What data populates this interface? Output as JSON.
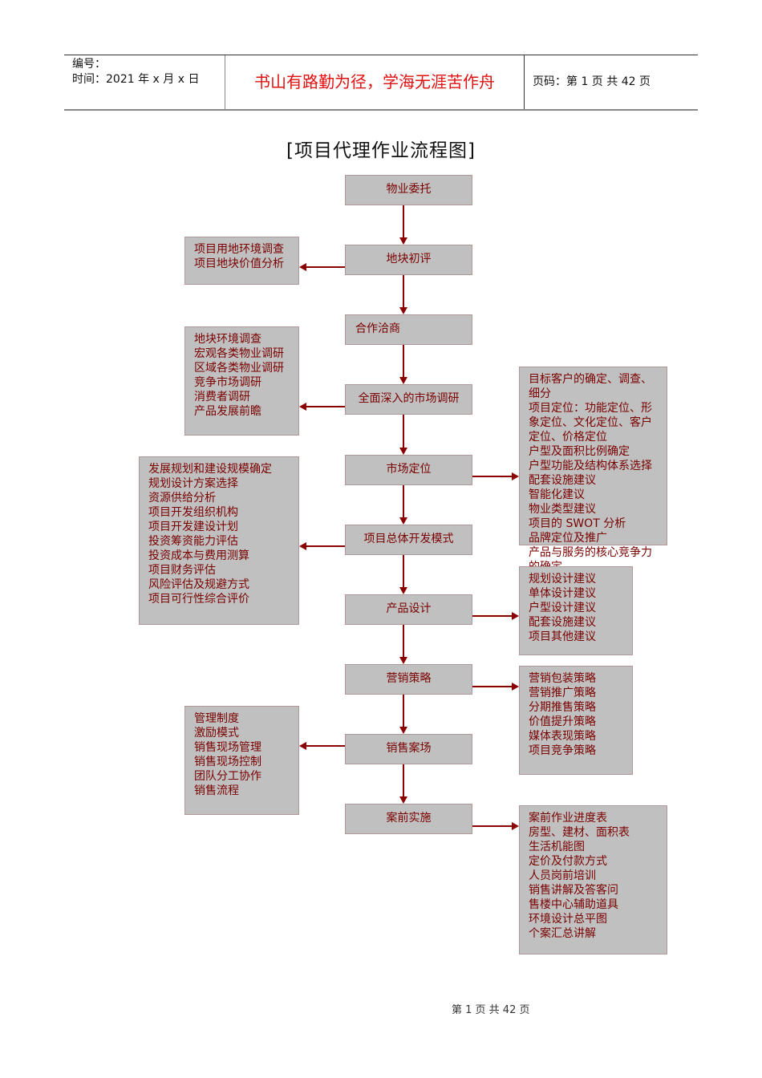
{
  "header": {
    "number_label": "编号：",
    "date_label": "时间：2021 年 x 月 x 日",
    "motto": "书山有路勤为径，学海无涯苦作舟",
    "page_info": "页码：第 1 页  共 42 页"
  },
  "title": "[项目代理作业流程图]",
  "flow": [
    "物业委托",
    "地块初评",
    "合作洽商",
    "全面深入的市场调研",
    "市场定位",
    "项目总体开发模式",
    "产品设计",
    "营销策略",
    "销售案场",
    "案前实施"
  ],
  "left_boxes": [
    {
      "items": [
        "项目用地环境调查",
        "项目地块价值分析"
      ]
    },
    {
      "items": [
        "地块环境调查",
        "宏观各类物业调研",
        "区域各类物业调研",
        "竞争市场调研",
        "消费者调研",
        "产品发展前瞻"
      ]
    },
    {
      "items": [
        "发展规划和建设规模确定",
        "规划设计方案选择",
        "资源供给分析",
        "项目开发组织机构",
        "项目开发建设计划",
        "投资筹资能力评估",
        "投资成本与费用测算",
        "项目财务评估",
        "风险评估及规避方式",
        "项目可行性综合评价"
      ]
    },
    {
      "items": [
        "管理制度",
        "激励模式",
        "销售现场管理",
        "销售现场控制",
        "团队分工协作",
        "销售流程"
      ]
    }
  ],
  "right_boxes": [
    {
      "items": [
        "目标客户的确定、调查、细分",
        "项目定位：功能定位、形象定位、文化定位、客户定位、价格定位",
        "户型及面积比例确定",
        "户型功能及结构体系选择",
        "配套设施建议",
        "智能化建议",
        "物业类型建议",
        "项目的 SWOT 分析",
        "品牌定位及推广",
        "产品与服务的核心竞争力的确定"
      ]
    },
    {
      "items": [
        "规划设计建议",
        "单体设计建议",
        "户型设计建议",
        "配套设施建议",
        "项目其他建议"
      ]
    },
    {
      "items": [
        "营销包装策略",
        "营销推广策略",
        "分期推售策略",
        "价值提升策略",
        "媒体表现策略",
        "项目竞争策略"
      ]
    },
    {
      "items": [
        "案前作业进度表",
        "房型、建材、面积表",
        "生活机能图",
        "定价及付款方式",
        "人员岗前培训",
        "销售讲解及答客问",
        "售楼中心辅助道具",
        "环境设计总平图",
        "个案汇总讲解"
      ]
    }
  ],
  "footer": "第 1 页 共 42 页",
  "colors": {
    "box_fill": "#c0c0c0",
    "box_text": "#7a0000",
    "arrow": "#8b0000",
    "motto": "#e01010"
  }
}
